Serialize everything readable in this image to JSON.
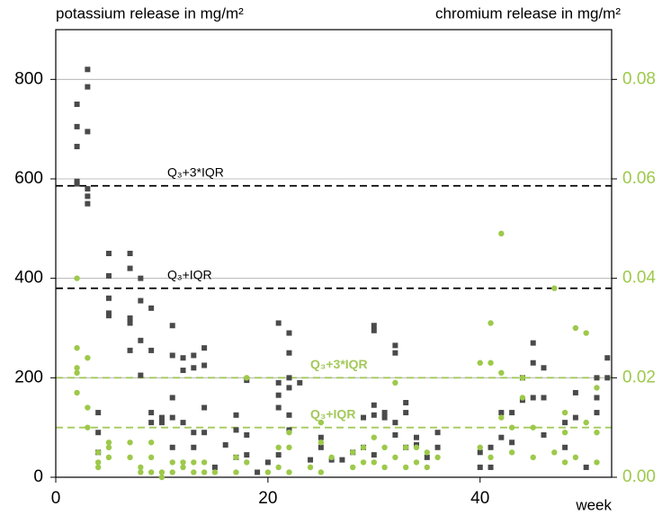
{
  "chart_data": {
    "type": "scatter",
    "ylabel": "potassium release in mg/m²",
    "y2label": "chromium release in mg/m²",
    "xlabel": "week",
    "xlim": [
      0,
      52.4
    ],
    "ylim": [
      0,
      900
    ],
    "y2lim": [
      0,
      0.09
    ],
    "xticks": [
      0,
      20,
      40
    ],
    "yticks": [
      0,
      200,
      400,
      600,
      800
    ],
    "y2ticks": [
      {
        "value": 0,
        "label": "0.00"
      },
      {
        "value": 0.02,
        "label": "0.02"
      },
      {
        "value": 0.04,
        "label": "0.04"
      },
      {
        "value": 0.06,
        "label": "0.06"
      },
      {
        "value": 0.08,
        "label": "0.08"
      }
    ],
    "grid": true,
    "reference_lines": [
      {
        "label": "Q₃+3*IQR",
        "value": 586,
        "color": "#000000"
      },
      {
        "label": "Q₃+IQR",
        "value": 380,
        "color": "#000000"
      },
      {
        "label": "Q₃+3*IQR",
        "value": 0.02,
        "axis": "y2",
        "color": "#a3c95a"
      },
      {
        "label": "Q₃+IQR",
        "value": 0.01,
        "axis": "y2",
        "color": "#a3c95a"
      }
    ],
    "series": [
      {
        "name": "potassium",
        "color": "#4a4a4a",
        "marker": "square",
        "x": [
          2,
          2,
          2,
          2,
          2,
          3,
          3,
          3,
          3,
          3,
          3,
          4,
          4,
          4,
          5,
          5,
          5,
          5,
          5,
          7,
          7,
          7,
          7,
          7,
          8,
          8,
          8,
          8,
          9,
          9,
          9,
          9,
          10,
          10,
          11,
          11,
          11,
          11,
          11,
          12,
          12,
          12,
          13,
          13,
          13,
          13,
          14,
          14,
          14,
          14,
          15,
          16,
          17,
          17,
          17,
          18,
          18,
          18,
          19,
          20,
          21,
          21,
          21,
          21,
          21,
          22,
          22,
          22,
          22,
          22,
          22,
          23,
          24,
          25,
          25,
          26,
          27,
          28,
          29,
          29,
          30,
          30,
          30,
          30,
          30,
          31,
          31,
          32,
          32,
          32,
          32,
          33,
          33,
          33,
          34,
          34,
          35,
          36,
          36,
          40,
          40,
          41,
          41,
          42,
          42,
          43,
          43,
          44,
          44,
          45,
          45,
          45,
          46,
          46,
          46,
          48,
          48,
          49,
          49,
          50,
          51,
          51,
          51,
          52,
          52
        ],
        "values": [
          750,
          705,
          665,
          595,
          590,
          820,
          785,
          695,
          580,
          565,
          550,
          130,
          90,
          50,
          450,
          405,
          360,
          330,
          325,
          450,
          420,
          320,
          310,
          255,
          400,
          355,
          275,
          205,
          340,
          255,
          130,
          110,
          120,
          110,
          305,
          245,
          160,
          120,
          60,
          240,
          215,
          110,
          245,
          220,
          90,
          60,
          260,
          225,
          140,
          90,
          20,
          65,
          125,
          95,
          40,
          195,
          85,
          45,
          10,
          30,
          310,
          190,
          165,
          140,
          45,
          290,
          250,
          200,
          180,
          125,
          95,
          190,
          35,
          80,
          60,
          35,
          35,
          50,
          120,
          60,
          305,
          295,
          145,
          125,
          45,
          130,
          120,
          265,
          250,
          110,
          85,
          150,
          130,
          60,
          80,
          65,
          40,
          90,
          60,
          50,
          20,
          60,
          20,
          130,
          80,
          130,
          70,
          200,
          155,
          270,
          230,
          160,
          220,
          160,
          85,
          110,
          60,
          170,
          120,
          20,
          200,
          160,
          130,
          240,
          200
        ]
      },
      {
        "name": "chromium",
        "color": "#9dc94a",
        "marker": "circle",
        "axis": "y2",
        "x": [
          2,
          2,
          2,
          2,
          2,
          3,
          3,
          3,
          4,
          4,
          4,
          5,
          5,
          5,
          7,
          7,
          8,
          8,
          9,
          9,
          9,
          10,
          10,
          11,
          11,
          12,
          12,
          13,
          13,
          14,
          14,
          15,
          17,
          17,
          18,
          18,
          20,
          21,
          21,
          22,
          22,
          22,
          24,
          25,
          25,
          25,
          26,
          28,
          28,
          29,
          29,
          30,
          30,
          31,
          31,
          32,
          32,
          33,
          33,
          34,
          34,
          35,
          35,
          36,
          40,
          40,
          41,
          41,
          41,
          42,
          42,
          42,
          43,
          43,
          44,
          44,
          45,
          45,
          47,
          47,
          48,
          48,
          48,
          49,
          49,
          50,
          50,
          51,
          51,
          51
        ],
        "values": [
          0.04,
          0.026,
          0.022,
          0.021,
          0.017,
          0.024,
          0.014,
          0.01,
          0.005,
          0.003,
          0.002,
          0.007,
          0.006,
          0.004,
          0.007,
          0.004,
          0.002,
          0.001,
          0.007,
          0.004,
          0.001,
          0.001,
          0,
          0.003,
          0.001,
          0.003,
          0.002,
          0.003,
          0.001,
          0.003,
          0.001,
          0.001,
          0.004,
          0.001,
          0.02,
          0.003,
          0.001,
          0.006,
          0.002,
          0.009,
          0.006,
          0.001,
          0.002,
          0.011,
          0.007,
          0.001,
          0.004,
          0.005,
          0.002,
          0.006,
          0.003,
          0.008,
          0.003,
          0.006,
          0.002,
          0.019,
          0.004,
          0.006,
          0.002,
          0.006,
          0.003,
          0.005,
          0.002,
          0.004,
          0.023,
          0.006,
          0.031,
          0.023,
          0.004,
          0.049,
          0.021,
          0.012,
          0.01,
          0.005,
          0.02,
          0.016,
          0.01,
          0.004,
          0.038,
          0.005,
          0.013,
          0.009,
          0.003,
          0.03,
          0.004,
          0.029,
          0.011,
          0.018,
          0.009,
          0.003
        ]
      }
    ]
  }
}
